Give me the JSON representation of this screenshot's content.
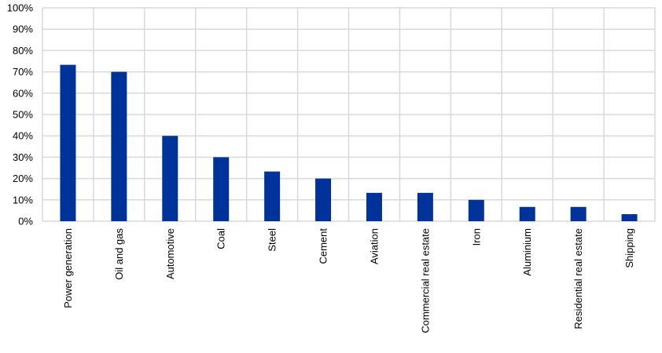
{
  "chart_data": {
    "type": "bar",
    "categories": [
      "Power generation",
      "Oil and gas",
      "Automotive",
      "Coal",
      "Steel",
      "Cement",
      "Aviation",
      "Commercial real estate",
      "Iron",
      "Aluminium",
      "Residential real estate",
      "Shipping"
    ],
    "values": [
      73.3,
      70,
      40,
      30,
      23.3,
      20,
      13.3,
      13.3,
      10,
      6.7,
      6.7,
      3.3
    ],
    "color": "#003399",
    "ylim": [
      0,
      100
    ],
    "yticks": [
      {
        "value": 0,
        "label": "0%"
      },
      {
        "value": 10,
        "label": "10%"
      },
      {
        "value": 20,
        "label": "20%"
      },
      {
        "value": 30,
        "label": "30%"
      },
      {
        "value": 40,
        "label": "40%"
      },
      {
        "value": 50,
        "label": "50%"
      },
      {
        "value": 60,
        "label": "60%"
      },
      {
        "value": 70,
        "label": "70%"
      },
      {
        "value": 80,
        "label": "80%"
      },
      {
        "value": 90,
        "label": "90%"
      },
      {
        "value": 100,
        "label": "100%"
      }
    ],
    "grid": true
  }
}
